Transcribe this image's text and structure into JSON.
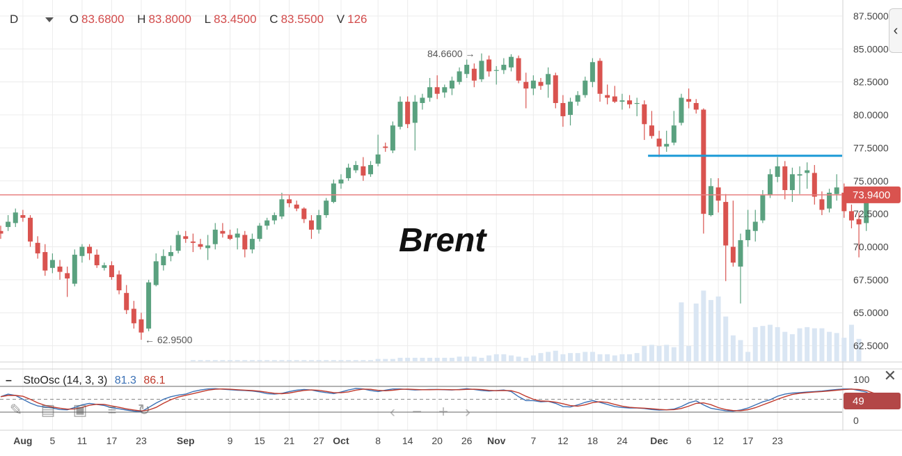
{
  "header": {
    "period": "D",
    "open_label": "O",
    "open": "83.6800",
    "high_label": "H",
    "high": "83.8000",
    "low_label": "L",
    "low": "83.4500",
    "close_label": "C",
    "close": "83.5500",
    "volume_label": "V",
    "volume": "126"
  },
  "annotation_text": "Brent",
  "price_marker": "73.9400",
  "high_marker": "84.6600",
  "low_marker": "62.9500",
  "stoch": {
    "name": "StoOsc (14, 3, 3)",
    "k_value": "81.3",
    "d_value": "86.1",
    "current": "49"
  },
  "colors": {
    "up": "#5aa17f",
    "down": "#d9534f",
    "volume": "#dae6f3",
    "blue_line": "#1c9ad6",
    "price_line": "#e88080",
    "k_line": "#3a70b5",
    "d_line": "#c0392b"
  },
  "chart_data": {
    "type": "candlestick",
    "ylim": [
      61,
      88.5
    ],
    "y_ticks": [
      "87.5000",
      "85.0000",
      "82.5000",
      "80.0000",
      "77.5000",
      "75.0000",
      "72.5000",
      "70.0000",
      "67.5000",
      "65.0000",
      "62.5000"
    ],
    "x_tick_labels": [
      {
        "label": "Aug",
        "i": 3,
        "bold": true
      },
      {
        "label": "5",
        "i": 7
      },
      {
        "label": "11",
        "i": 11
      },
      {
        "label": "17",
        "i": 15
      },
      {
        "label": "23",
        "i": 19
      },
      {
        "label": "Sep",
        "i": 25,
        "bold": true
      },
      {
        "label": "9",
        "i": 31
      },
      {
        "label": "15",
        "i": 35
      },
      {
        "label": "21",
        "i": 39
      },
      {
        "label": "27",
        "i": 43
      },
      {
        "label": "Oct",
        "i": 46,
        "bold": true
      },
      {
        "label": "8",
        "i": 51
      },
      {
        "label": "14",
        "i": 55
      },
      {
        "label": "20",
        "i": 59
      },
      {
        "label": "26",
        "i": 63
      },
      {
        "label": "Nov",
        "i": 67,
        "bold": true
      },
      {
        "label": "7",
        "i": 72
      },
      {
        "label": "12",
        "i": 76
      },
      {
        "label": "18",
        "i": 80
      },
      {
        "label": "24",
        "i": 84
      },
      {
        "label": "Dec",
        "i": 89,
        "bold": true
      },
      {
        "label": "6",
        "i": 93
      },
      {
        "label": "12",
        "i": 97
      },
      {
        "label": "17",
        "i": 101
      },
      {
        "label": "23",
        "i": 105
      }
    ],
    "candles": [
      [
        71.2,
        71.6,
        70.6,
        71.0
      ],
      [
        71.5,
        72.4,
        71.2,
        71.9
      ],
      [
        71.8,
        72.9,
        71.5,
        72.6
      ],
      [
        72.4,
        72.8,
        71.9,
        72.2
      ],
      [
        72.2,
        72.4,
        70.0,
        70.4
      ],
      [
        70.3,
        70.8,
        69.1,
        69.5
      ],
      [
        69.6,
        70.2,
        67.8,
        68.2
      ],
      [
        68.4,
        69.5,
        68.0,
        69.0
      ],
      [
        68.5,
        69.0,
        67.5,
        68.1
      ],
      [
        68.0,
        68.5,
        66.2,
        67.6
      ],
      [
        67.2,
        69.8,
        67.0,
        69.4
      ],
      [
        69.3,
        70.2,
        68.8,
        70.0
      ],
      [
        70.0,
        70.2,
        69.0,
        69.5
      ],
      [
        69.4,
        69.8,
        68.4,
        68.6
      ],
      [
        68.4,
        68.8,
        68.2,
        68.6
      ],
      [
        68.6,
        68.9,
        67.5,
        67.7
      ],
      [
        67.9,
        68.2,
        66.4,
        66.7
      ],
      [
        66.5,
        67.1,
        64.9,
        65.2
      ],
      [
        65.3,
        65.9,
        63.8,
        64.2
      ],
      [
        64.5,
        65.0,
        62.95,
        63.5
      ],
      [
        63.8,
        67.5,
        63.6,
        67.3
      ],
      [
        67.1,
        69.5,
        67.0,
        68.9
      ],
      [
        68.6,
        69.8,
        68.2,
        69.3
      ],
      [
        69.3,
        70.1,
        68.9,
        69.6
      ],
      [
        69.7,
        71.2,
        69.5,
        70.9
      ],
      [
        70.8,
        71.2,
        70.3,
        70.6
      ],
      [
        70.4,
        71.0,
        69.6,
        70.3
      ],
      [
        70.2,
        70.6,
        69.8,
        70.0
      ],
      [
        69.9,
        70.9,
        69.0,
        70.1
      ],
      [
        70.2,
        71.8,
        69.8,
        71.3
      ],
      [
        71.2,
        71.8,
        70.7,
        71.0
      ],
      [
        70.9,
        71.3,
        70.5,
        70.6
      ],
      [
        70.7,
        71.4,
        69.8,
        71.0
      ],
      [
        70.9,
        71.2,
        69.2,
        69.8
      ],
      [
        69.8,
        71.0,
        69.5,
        70.6
      ],
      [
        70.6,
        71.8,
        70.4,
        71.6
      ],
      [
        71.6,
        72.2,
        71.3,
        72.0
      ],
      [
        72.0,
        72.6,
        71.7,
        72.4
      ],
      [
        72.3,
        74.1,
        72.1,
        73.6
      ],
      [
        73.6,
        73.9,
        73.0,
        73.3
      ],
      [
        73.2,
        73.5,
        72.7,
        72.9
      ],
      [
        72.9,
        73.0,
        71.8,
        72.1
      ],
      [
        72.0,
        72.4,
        70.6,
        71.3
      ],
      [
        71.3,
        72.8,
        71.0,
        72.4
      ],
      [
        72.4,
        73.7,
        72.2,
        73.5
      ],
      [
        73.4,
        75.1,
        73.3,
        74.8
      ],
      [
        74.8,
        75.5,
        74.4,
        75.1
      ],
      [
        75.2,
        76.3,
        75.0,
        76.0
      ],
      [
        75.8,
        76.5,
        75.6,
        76.2
      ],
      [
        76.1,
        76.8,
        75.0,
        75.4
      ],
      [
        75.5,
        76.5,
        75.3,
        76.2
      ],
      [
        76.3,
        78.5,
        76.1,
        77.0
      ],
      [
        77.6,
        77.9,
        77.2,
        77.5
      ],
      [
        77.3,
        79.5,
        77.1,
        79.2
      ],
      [
        79.1,
        81.4,
        78.9,
        81.0
      ],
      [
        81.0,
        81.4,
        79.0,
        79.3
      ],
      [
        79.4,
        81.5,
        77.3,
        81.0
      ],
      [
        80.9,
        81.6,
        80.4,
        81.3
      ],
      [
        81.3,
        82.8,
        81.0,
        82.1
      ],
      [
        82.1,
        83.0,
        81.2,
        81.6
      ],
      [
        81.7,
        82.3,
        81.3,
        82.1
      ],
      [
        82.0,
        82.9,
        81.5,
        82.6
      ],
      [
        82.5,
        83.6,
        82.3,
        83.3
      ],
      [
        83.1,
        84.2,
        82.8,
        83.8
      ],
      [
        83.5,
        83.9,
        82.1,
        82.6
      ],
      [
        82.7,
        84.66,
        82.5,
        84.1
      ],
      [
        84.2,
        84.5,
        82.9,
        83.3
      ],
      [
        83.4,
        83.7,
        82.3,
        83.4
      ],
      [
        83.4,
        84.3,
        83.1,
        83.8
      ],
      [
        83.6,
        84.6,
        83.3,
        84.4
      ],
      [
        84.3,
        84.5,
        82.4,
        82.6
      ],
      [
        82.5,
        83.2,
        80.5,
        82.0
      ],
      [
        82.0,
        83.0,
        81.5,
        82.6
      ],
      [
        82.5,
        82.8,
        81.9,
        82.2
      ],
      [
        82.3,
        83.6,
        81.3,
        83.1
      ],
      [
        83.0,
        83.2,
        80.5,
        80.9
      ],
      [
        80.9,
        81.5,
        79.1,
        79.9
      ],
      [
        80.0,
        81.3,
        79.2,
        81.0
      ],
      [
        81.0,
        81.8,
        80.7,
        81.5
      ],
      [
        81.5,
        82.9,
        81.3,
        82.6
      ],
      [
        82.5,
        84.3,
        82.1,
        84.0
      ],
      [
        84.1,
        84.3,
        81.0,
        81.6
      ],
      [
        81.5,
        82.3,
        80.8,
        81.3
      ],
      [
        81.4,
        82.2,
        80.9,
        81.0
      ],
      [
        81.0,
        81.6,
        80.4,
        81.1
      ],
      [
        81.1,
        81.5,
        80.5,
        80.8
      ],
      [
        80.9,
        81.3,
        79.9,
        80.9
      ],
      [
        80.8,
        81.1,
        78.1,
        79.3
      ],
      [
        79.2,
        80.3,
        78.2,
        78.4
      ],
      [
        78.2,
        78.8,
        76.8,
        77.6
      ],
      [
        77.6,
        78.8,
        77.2,
        77.8
      ],
      [
        77.9,
        80.3,
        77.7,
        79.2
      ],
      [
        79.4,
        81.6,
        79.2,
        81.3
      ],
      [
        81.2,
        82.0,
        80.5,
        81.0
      ],
      [
        80.9,
        81.2,
        80.1,
        80.4
      ],
      [
        80.4,
        80.5,
        71.0,
        72.5
      ],
      [
        72.4,
        75.2,
        72.3,
        74.6
      ],
      [
        74.5,
        75.2,
        72.6,
        73.5
      ],
      [
        73.4,
        74.0,
        67.4,
        70.1
      ],
      [
        70.0,
        73.5,
        68.5,
        68.8
      ],
      [
        68.5,
        71.0,
        65.7,
        70.5
      ],
      [
        70.5,
        72.8,
        70.0,
        71.3
      ],
      [
        71.2,
        72.8,
        70.4,
        71.9
      ],
      [
        72.0,
        74.3,
        71.8,
        73.9
      ],
      [
        73.9,
        75.9,
        73.7,
        75.5
      ],
      [
        75.3,
        76.8,
        74.9,
        76.1
      ],
      [
        76.1,
        76.5,
        73.6,
        74.3
      ],
      [
        74.3,
        76.0,
        73.4,
        75.5
      ],
      [
        75.4,
        76.1,
        74.0,
        75.5
      ],
      [
        75.6,
        76.4,
        74.4,
        75.8
      ],
      [
        75.6,
        76.2,
        73.2,
        73.8
      ],
      [
        73.6,
        74.2,
        72.4,
        72.8
      ],
      [
        72.9,
        74.4,
        72.6,
        74.1
      ],
      [
        74.0,
        75.5,
        73.5,
        74.5
      ],
      [
        74.1,
        74.8,
        72.2,
        72.7
      ],
      [
        72.7,
        73.2,
        71.4,
        72.0
      ],
      [
        72.1,
        72.6,
        69.2,
        71.7
      ],
      [
        71.8,
        74.3,
        71.2,
        74.0
      ],
      [
        73.9,
        74.5,
        73.6,
        73.94
      ]
    ],
    "volume": [
      0,
      0,
      0,
      0,
      0,
      0,
      0,
      0,
      0,
      0,
      0,
      0,
      0,
      0,
      0,
      0,
      0,
      0,
      0,
      0,
      0,
      0,
      0,
      0,
      0,
      0,
      0.1,
      0.1,
      0.1,
      0.1,
      0.1,
      0.1,
      0.1,
      0.1,
      0.1,
      0.1,
      0.1,
      0.1,
      0.1,
      0.1,
      0.1,
      0.1,
      0.1,
      0.1,
      0.1,
      0.1,
      0.1,
      0.1,
      0.1,
      0.1,
      0.1,
      0.2,
      0.2,
      0.2,
      0.3,
      0.3,
      0.3,
      0.3,
      0.3,
      0.3,
      0.3,
      0.3,
      0.4,
      0.4,
      0.4,
      0.3,
      0.5,
      0.6,
      0.6,
      0.5,
      0.4,
      0.3,
      0.5,
      0.7,
      0.8,
      0.9,
      0.6,
      0.7,
      0.7,
      0.8,
      0.8,
      0.6,
      0.6,
      0.5,
      0.6,
      0.6,
      0.7,
      1.3,
      1.4,
      1.3,
      1.4,
      1.2,
      5.0,
      1.3,
      4.9,
      6.0,
      5.2,
      5.5,
      3.8,
      2.2,
      1.8,
      0.8,
      2.9,
      3.0,
      3.1,
      2.9,
      2.5,
      2.3,
      2.8,
      2.9,
      2.8,
      2.8,
      2.5,
      2.4,
      2.0,
      3.1,
      1.9
    ],
    "stoch_k": [
      60,
      70,
      65,
      50,
      35,
      24,
      20,
      16,
      10,
      9,
      18,
      28,
      34,
      30,
      26,
      17,
      13,
      8,
      4,
      2,
      18,
      35,
      50,
      60,
      66,
      70,
      80,
      86,
      90,
      91,
      89,
      87,
      85,
      84,
      82,
      78,
      72,
      70,
      73,
      80,
      85,
      88,
      86,
      80,
      76,
      72,
      78,
      86,
      92,
      90,
      84,
      80,
      85,
      90,
      90,
      88,
      86,
      87,
      88,
      88,
      87,
      86,
      88,
      91,
      88,
      84,
      82,
      84,
      86,
      80,
      60,
      45,
      45,
      40,
      42,
      34,
      22,
      20,
      28,
      38,
      45,
      38,
      30,
      22,
      18,
      16,
      16,
      14,
      10,
      8,
      9,
      12,
      22,
      36,
      44,
      28,
      15,
      10,
      5,
      4,
      8,
      16,
      28,
      40,
      48,
      62,
      70,
      74,
      76,
      78,
      80,
      82,
      85,
      88,
      90,
      90,
      84,
      78,
      60,
      58,
      60
    ]
  }
}
